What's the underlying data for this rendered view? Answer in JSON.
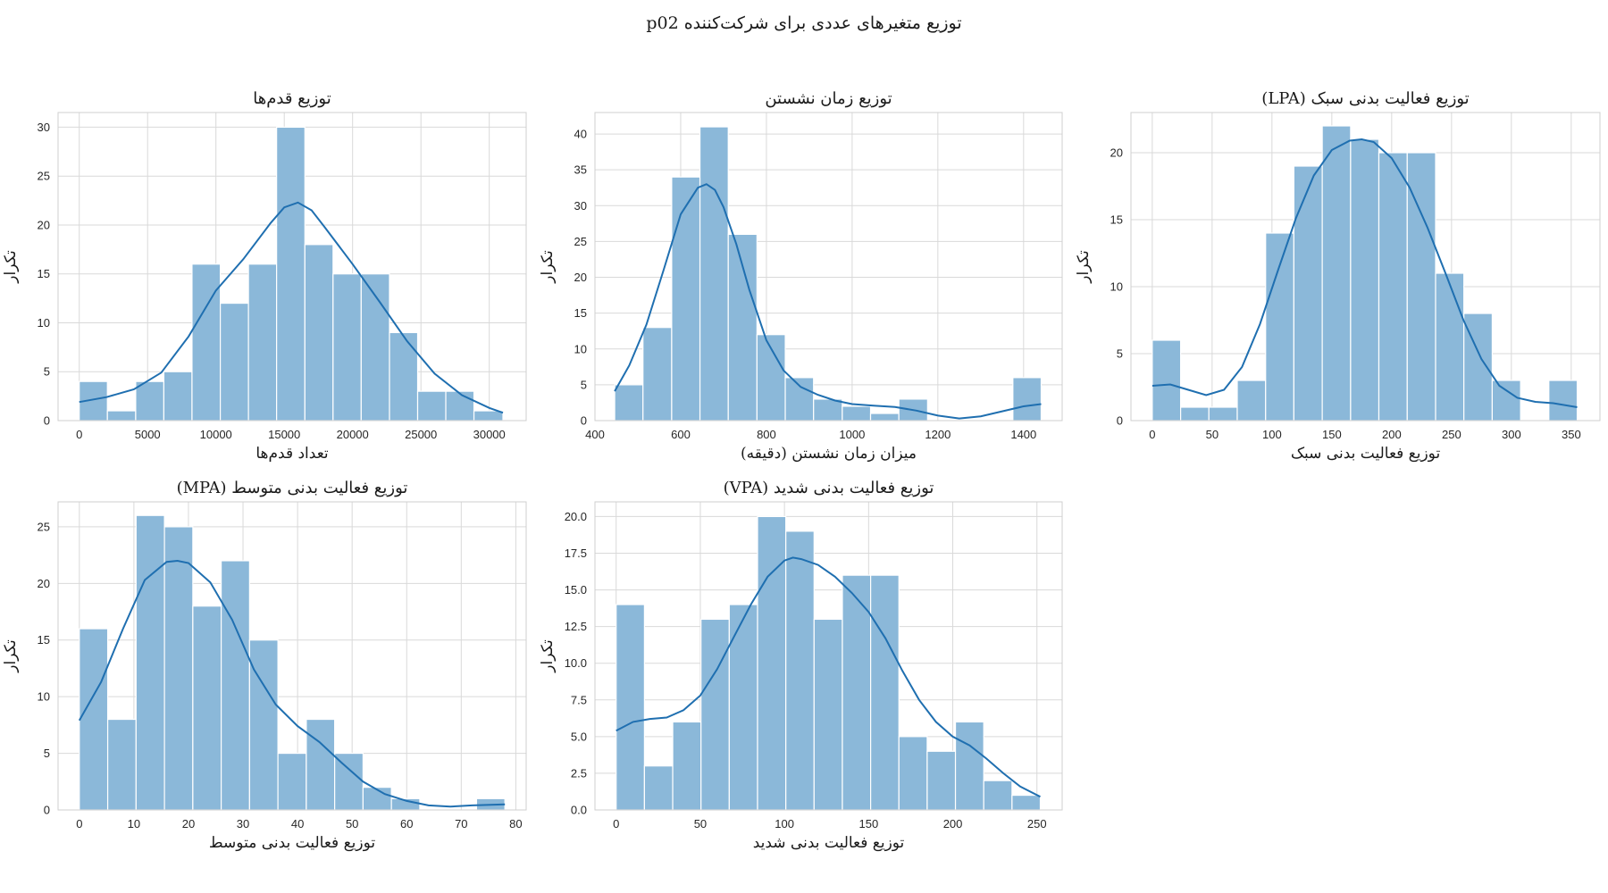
{
  "figure": {
    "title": "توزیع متغیرهای عددی برای شرکت‌کننده p02"
  },
  "chart_data": [
    {
      "type": "histogram",
      "title": "توزیع قدم‌ها",
      "xlabel": "تعداد قدم‌ها",
      "ylabel": "تکرار",
      "xlim": [
        -1550,
        32700
      ],
      "ylim": [
        0,
        31.5
      ],
      "xticks": [
        0,
        5000,
        10000,
        15000,
        20000,
        25000,
        30000
      ],
      "yticks": [
        0,
        5,
        10,
        15,
        20,
        25,
        30
      ],
      "bins": [
        {
          "x0": 0,
          "x1": 2060,
          "count": 4
        },
        {
          "x0": 2060,
          "x1": 4130,
          "count": 1
        },
        {
          "x0": 4130,
          "x1": 6190,
          "count": 4
        },
        {
          "x0": 6190,
          "x1": 8250,
          "count": 5
        },
        {
          "x0": 8250,
          "x1": 10320,
          "count": 16
        },
        {
          "x0": 10320,
          "x1": 12380,
          "count": 12
        },
        {
          "x0": 12380,
          "x1": 14440,
          "count": 16
        },
        {
          "x0": 14440,
          "x1": 16510,
          "count": 30
        },
        {
          "x0": 16510,
          "x1": 18570,
          "count": 18
        },
        {
          "x0": 18570,
          "x1": 20630,
          "count": 15
        },
        {
          "x0": 20630,
          "x1": 22700,
          "count": 15
        },
        {
          "x0": 22700,
          "x1": 24760,
          "count": 9
        },
        {
          "x0": 24760,
          "x1": 26820,
          "count": 3
        },
        {
          "x0": 26820,
          "x1": 28880,
          "count": 3
        },
        {
          "x0": 28880,
          "x1": 31000,
          "count": 1
        }
      ],
      "kde": {
        "x": [
          0,
          2000,
          4000,
          6000,
          8000,
          10000,
          12000,
          14000,
          15000,
          16000,
          17000,
          18000,
          20000,
          22000,
          24000,
          26000,
          28000,
          30000,
          31000
        ],
        "y": [
          1.9,
          2.4,
          3.2,
          4.9,
          8.6,
          13.3,
          16.5,
          20.2,
          21.8,
          22.3,
          21.5,
          19.7,
          16.0,
          12.1,
          8.1,
          4.8,
          2.6,
          1.3,
          0.8
        ]
      }
    },
    {
      "type": "histogram",
      "title": "توزیع زمان نشستن",
      "xlabel": "میزان زمان نشستن (دقیقه)",
      "ylabel": "تکرار",
      "xlim": [
        400,
        1490
      ],
      "ylim": [
        0,
        43
      ],
      "xticks": [
        400,
        600,
        800,
        1000,
        1200,
        1400
      ],
      "yticks": [
        0,
        5,
        10,
        15,
        20,
        25,
        30,
        35,
        40
      ],
      "bins": [
        {
          "x0": 446,
          "x1": 512,
          "count": 5
        },
        {
          "x0": 512,
          "x1": 579,
          "count": 13
        },
        {
          "x0": 579,
          "x1": 645,
          "count": 34
        },
        {
          "x0": 645,
          "x1": 711,
          "count": 41
        },
        {
          "x0": 711,
          "x1": 778,
          "count": 26
        },
        {
          "x0": 778,
          "x1": 844,
          "count": 12
        },
        {
          "x0": 844,
          "x1": 910,
          "count": 6
        },
        {
          "x0": 910,
          "x1": 977,
          "count": 3
        },
        {
          "x0": 977,
          "x1": 1043,
          "count": 2
        },
        {
          "x0": 1043,
          "x1": 1109,
          "count": 1
        },
        {
          "x0": 1109,
          "x1": 1176,
          "count": 3
        },
        {
          "x0": 1176,
          "x1": 1242,
          "count": 0
        },
        {
          "x0": 1242,
          "x1": 1308,
          "count": 0
        },
        {
          "x0": 1308,
          "x1": 1375,
          "count": 0
        },
        {
          "x0": 1375,
          "x1": 1441,
          "count": 6
        }
      ],
      "kde": {
        "x": [
          446,
          480,
          520,
          560,
          600,
          640,
          660,
          680,
          700,
          730,
          760,
          800,
          840,
          880,
          920,
          960,
          1000,
          1050,
          1100,
          1150,
          1200,
          1250,
          1300,
          1350,
          1400,
          1441
        ],
        "y": [
          4.1,
          7.7,
          13.4,
          21.0,
          28.8,
          32.5,
          33.0,
          32.2,
          29.8,
          24.6,
          18.3,
          11.2,
          7.0,
          4.7,
          3.6,
          2.8,
          2.3,
          2.1,
          1.9,
          1.4,
          0.7,
          0.3,
          0.6,
          1.3,
          2.0,
          2.3
        ]
      }
    },
    {
      "type": "histogram",
      "title": "توزیع فعالیت بدنی سبک (LPA)",
      "xlabel": "توزیع فعالیت بدنی سبک",
      "ylabel": "تکرار",
      "xlim": [
        -17.8,
        374
      ],
      "ylim": [
        0,
        23
      ],
      "xticks": [
        0,
        50,
        100,
        150,
        200,
        250,
        300,
        350
      ],
      "yticks": [
        0,
        5,
        10,
        15,
        20
      ],
      "bins": [
        {
          "x0": 0,
          "x1": 23.7,
          "count": 6
        },
        {
          "x0": 23.7,
          "x1": 47.3,
          "count": 1
        },
        {
          "x0": 47.3,
          "x1": 71,
          "count": 1
        },
        {
          "x0": 71,
          "x1": 94.7,
          "count": 3
        },
        {
          "x0": 94.7,
          "x1": 118.3,
          "count": 14
        },
        {
          "x0": 118.3,
          "x1": 142,
          "count": 19
        },
        {
          "x0": 142,
          "x1": 165.7,
          "count": 22
        },
        {
          "x0": 165.7,
          "x1": 189.3,
          "count": 21
        },
        {
          "x0": 189.3,
          "x1": 213,
          "count": 20
        },
        {
          "x0": 213,
          "x1": 236.7,
          "count": 20
        },
        {
          "x0": 236.7,
          "x1": 260.3,
          "count": 11
        },
        {
          "x0": 260.3,
          "x1": 284,
          "count": 8
        },
        {
          "x0": 284,
          "x1": 307.7,
          "count": 3
        },
        {
          "x0": 307.7,
          "x1": 331.3,
          "count": 0
        },
        {
          "x0": 331.3,
          "x1": 355,
          "count": 3
        }
      ],
      "kde": {
        "x": [
          0,
          15,
          30,
          45,
          60,
          75,
          90,
          105,
          120,
          135,
          150,
          165,
          175,
          185,
          200,
          215,
          230,
          245,
          260,
          275,
          290,
          305,
          320,
          335,
          355
        ],
        "y": [
          2.6,
          2.7,
          2.3,
          1.9,
          2.3,
          4.0,
          7.2,
          11.2,
          15.1,
          18.3,
          20.2,
          20.9,
          21.0,
          20.8,
          19.6,
          17.4,
          14.4,
          11.0,
          7.5,
          4.6,
          2.6,
          1.7,
          1.4,
          1.3,
          1.0
        ]
      }
    },
    {
      "type": "histogram",
      "title": "توزیع فعالیت بدنی متوسط (MPA)",
      "xlabel": "توزیع فعالیت بدنی متوسط",
      "ylabel": "تکرار",
      "xlim": [
        -3.9,
        81.9
      ],
      "ylim": [
        0,
        27.2
      ],
      "xticks": [
        0,
        10,
        20,
        30,
        40,
        50,
        60,
        70,
        80
      ],
      "yticks": [
        0,
        5,
        10,
        15,
        20,
        25
      ],
      "bins": [
        {
          "x0": 0,
          "x1": 5.2,
          "count": 16
        },
        {
          "x0": 5.2,
          "x1": 10.4,
          "count": 8
        },
        {
          "x0": 10.4,
          "x1": 15.6,
          "count": 26
        },
        {
          "x0": 15.6,
          "x1": 20.8,
          "count": 25
        },
        {
          "x0": 20.8,
          "x1": 26,
          "count": 18
        },
        {
          "x0": 26,
          "x1": 31.2,
          "count": 22
        },
        {
          "x0": 31.2,
          "x1": 36.4,
          "count": 15
        },
        {
          "x0": 36.4,
          "x1": 41.6,
          "count": 5
        },
        {
          "x0": 41.6,
          "x1": 46.8,
          "count": 8
        },
        {
          "x0": 46.8,
          "x1": 52,
          "count": 5
        },
        {
          "x0": 52,
          "x1": 57.2,
          "count": 2
        },
        {
          "x0": 57.2,
          "x1": 62.4,
          "count": 1
        },
        {
          "x0": 62.4,
          "x1": 67.6,
          "count": 0
        },
        {
          "x0": 67.6,
          "x1": 72.8,
          "count": 0
        },
        {
          "x0": 72.8,
          "x1": 78,
          "count": 1
        }
      ],
      "kde": {
        "x": [
          0,
          4,
          8,
          12,
          16,
          18,
          20,
          24,
          28,
          32,
          36,
          40,
          44,
          48,
          52,
          56,
          60,
          64,
          68,
          72,
          78
        ],
        "y": [
          7.9,
          11.3,
          16.0,
          20.3,
          21.9,
          22.0,
          21.8,
          20.1,
          16.8,
          12.4,
          9.3,
          7.4,
          6.0,
          4.2,
          2.5,
          1.4,
          0.8,
          0.4,
          0.3,
          0.4,
          0.5
        ]
      }
    },
    {
      "type": "histogram",
      "title": "توزیع فعالیت بدنی شدید (VPA)",
      "xlabel": "توزیع فعالیت بدنی شدید",
      "ylabel": "تکرار",
      "xlim": [
        -12.6,
        265
      ],
      "ylim": [
        0,
        21
      ],
      "xticks": [
        0,
        50,
        100,
        150,
        200,
        250
      ],
      "yticks": [
        0,
        2.5,
        5.0,
        7.5,
        10.0,
        12.5,
        15.0,
        17.5,
        20.0
      ],
      "ytick_labels": [
        "0.0",
        "2.5",
        "5.0",
        "7.5",
        "10.0",
        "12.5",
        "15.0",
        "17.5",
        "20.0"
      ],
      "bins": [
        {
          "x0": 0,
          "x1": 16.8,
          "count": 14
        },
        {
          "x0": 16.8,
          "x1": 33.6,
          "count": 3
        },
        {
          "x0": 33.6,
          "x1": 50.4,
          "count": 6
        },
        {
          "x0": 50.4,
          "x1": 67.2,
          "count": 13
        },
        {
          "x0": 67.2,
          "x1": 84,
          "count": 14
        },
        {
          "x0": 84,
          "x1": 100.8,
          "count": 20
        },
        {
          "x0": 100.8,
          "x1": 117.6,
          "count": 19
        },
        {
          "x0": 117.6,
          "x1": 134.4,
          "count": 13
        },
        {
          "x0": 134.4,
          "x1": 151.2,
          "count": 16
        },
        {
          "x0": 151.2,
          "x1": 168,
          "count": 16
        },
        {
          "x0": 168,
          "x1": 184.8,
          "count": 5
        },
        {
          "x0": 184.8,
          "x1": 201.6,
          "count": 4
        },
        {
          "x0": 201.6,
          "x1": 218.4,
          "count": 6
        },
        {
          "x0": 218.4,
          "x1": 235.2,
          "count": 2
        },
        {
          "x0": 235.2,
          "x1": 252,
          "count": 1
        }
      ],
      "kde": {
        "x": [
          0,
          10,
          20,
          30,
          40,
          50,
          60,
          70,
          80,
          90,
          100,
          105,
          110,
          120,
          130,
          140,
          150,
          160,
          170,
          180,
          190,
          200,
          210,
          220,
          230,
          240,
          252
        ],
        "y": [
          5.4,
          6.0,
          6.2,
          6.3,
          6.8,
          7.8,
          9.6,
          11.8,
          14.0,
          15.9,
          17.0,
          17.2,
          17.1,
          16.7,
          15.9,
          14.8,
          13.5,
          11.7,
          9.5,
          7.5,
          6.0,
          5.0,
          4.4,
          3.5,
          2.5,
          1.6,
          0.9
        ]
      }
    }
  ]
}
